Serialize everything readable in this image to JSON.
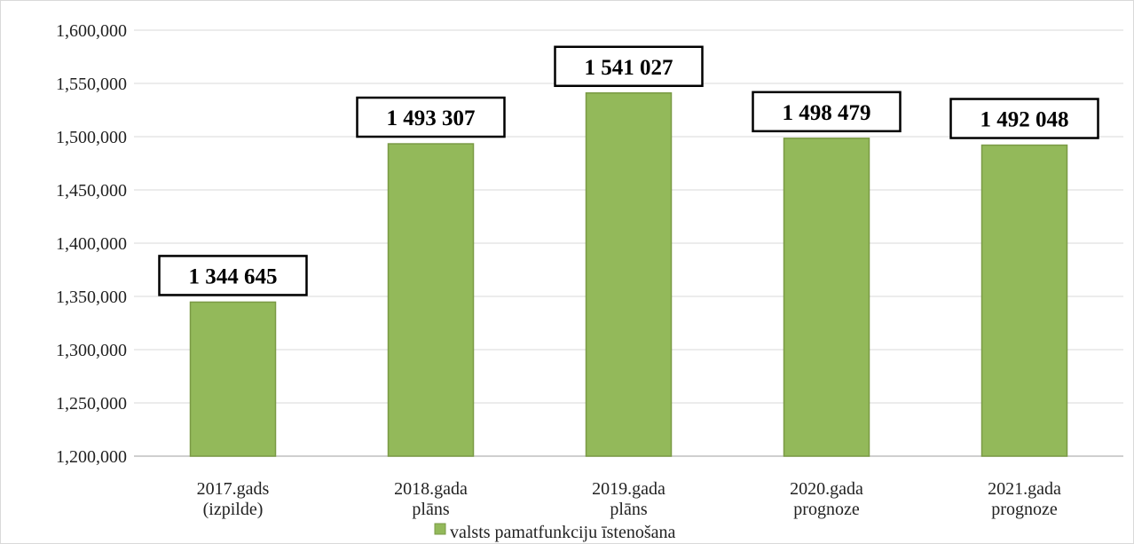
{
  "chart_data": {
    "type": "bar",
    "categories": [
      [
        "2017.gads",
        "(izpilde)"
      ],
      [
        "2018.gada",
        "plāns"
      ],
      [
        "2019.gada",
        "plāns"
      ],
      [
        "2020.gada",
        "prognoze"
      ],
      [
        "2021.gada",
        "prognoze"
      ]
    ],
    "series": [
      {
        "name": "valsts pamatfunkciju īstenošana",
        "values": [
          1344645,
          1493307,
          1541027,
          1498479,
          1492048
        ],
        "data_labels": [
          "1 344 645",
          "1 493 307",
          "1 541 027",
          "1 498 479",
          "1 492 048"
        ]
      }
    ],
    "y_ticks": [
      "1,200,000",
      "1,250,000",
      "1,300,000",
      "1,350,000",
      "1,400,000",
      "1,450,000",
      "1,500,000",
      "1,550,000",
      "1,600,000"
    ],
    "ylim": [
      1200000,
      1600000
    ],
    "grid": true,
    "legend_position": "bottom",
    "colors": {
      "bar_fill": "#93b95a",
      "bar_stroke": "#7a9a45",
      "grid": "#d9d9d9",
      "label_box_border": "#000000"
    }
  }
}
